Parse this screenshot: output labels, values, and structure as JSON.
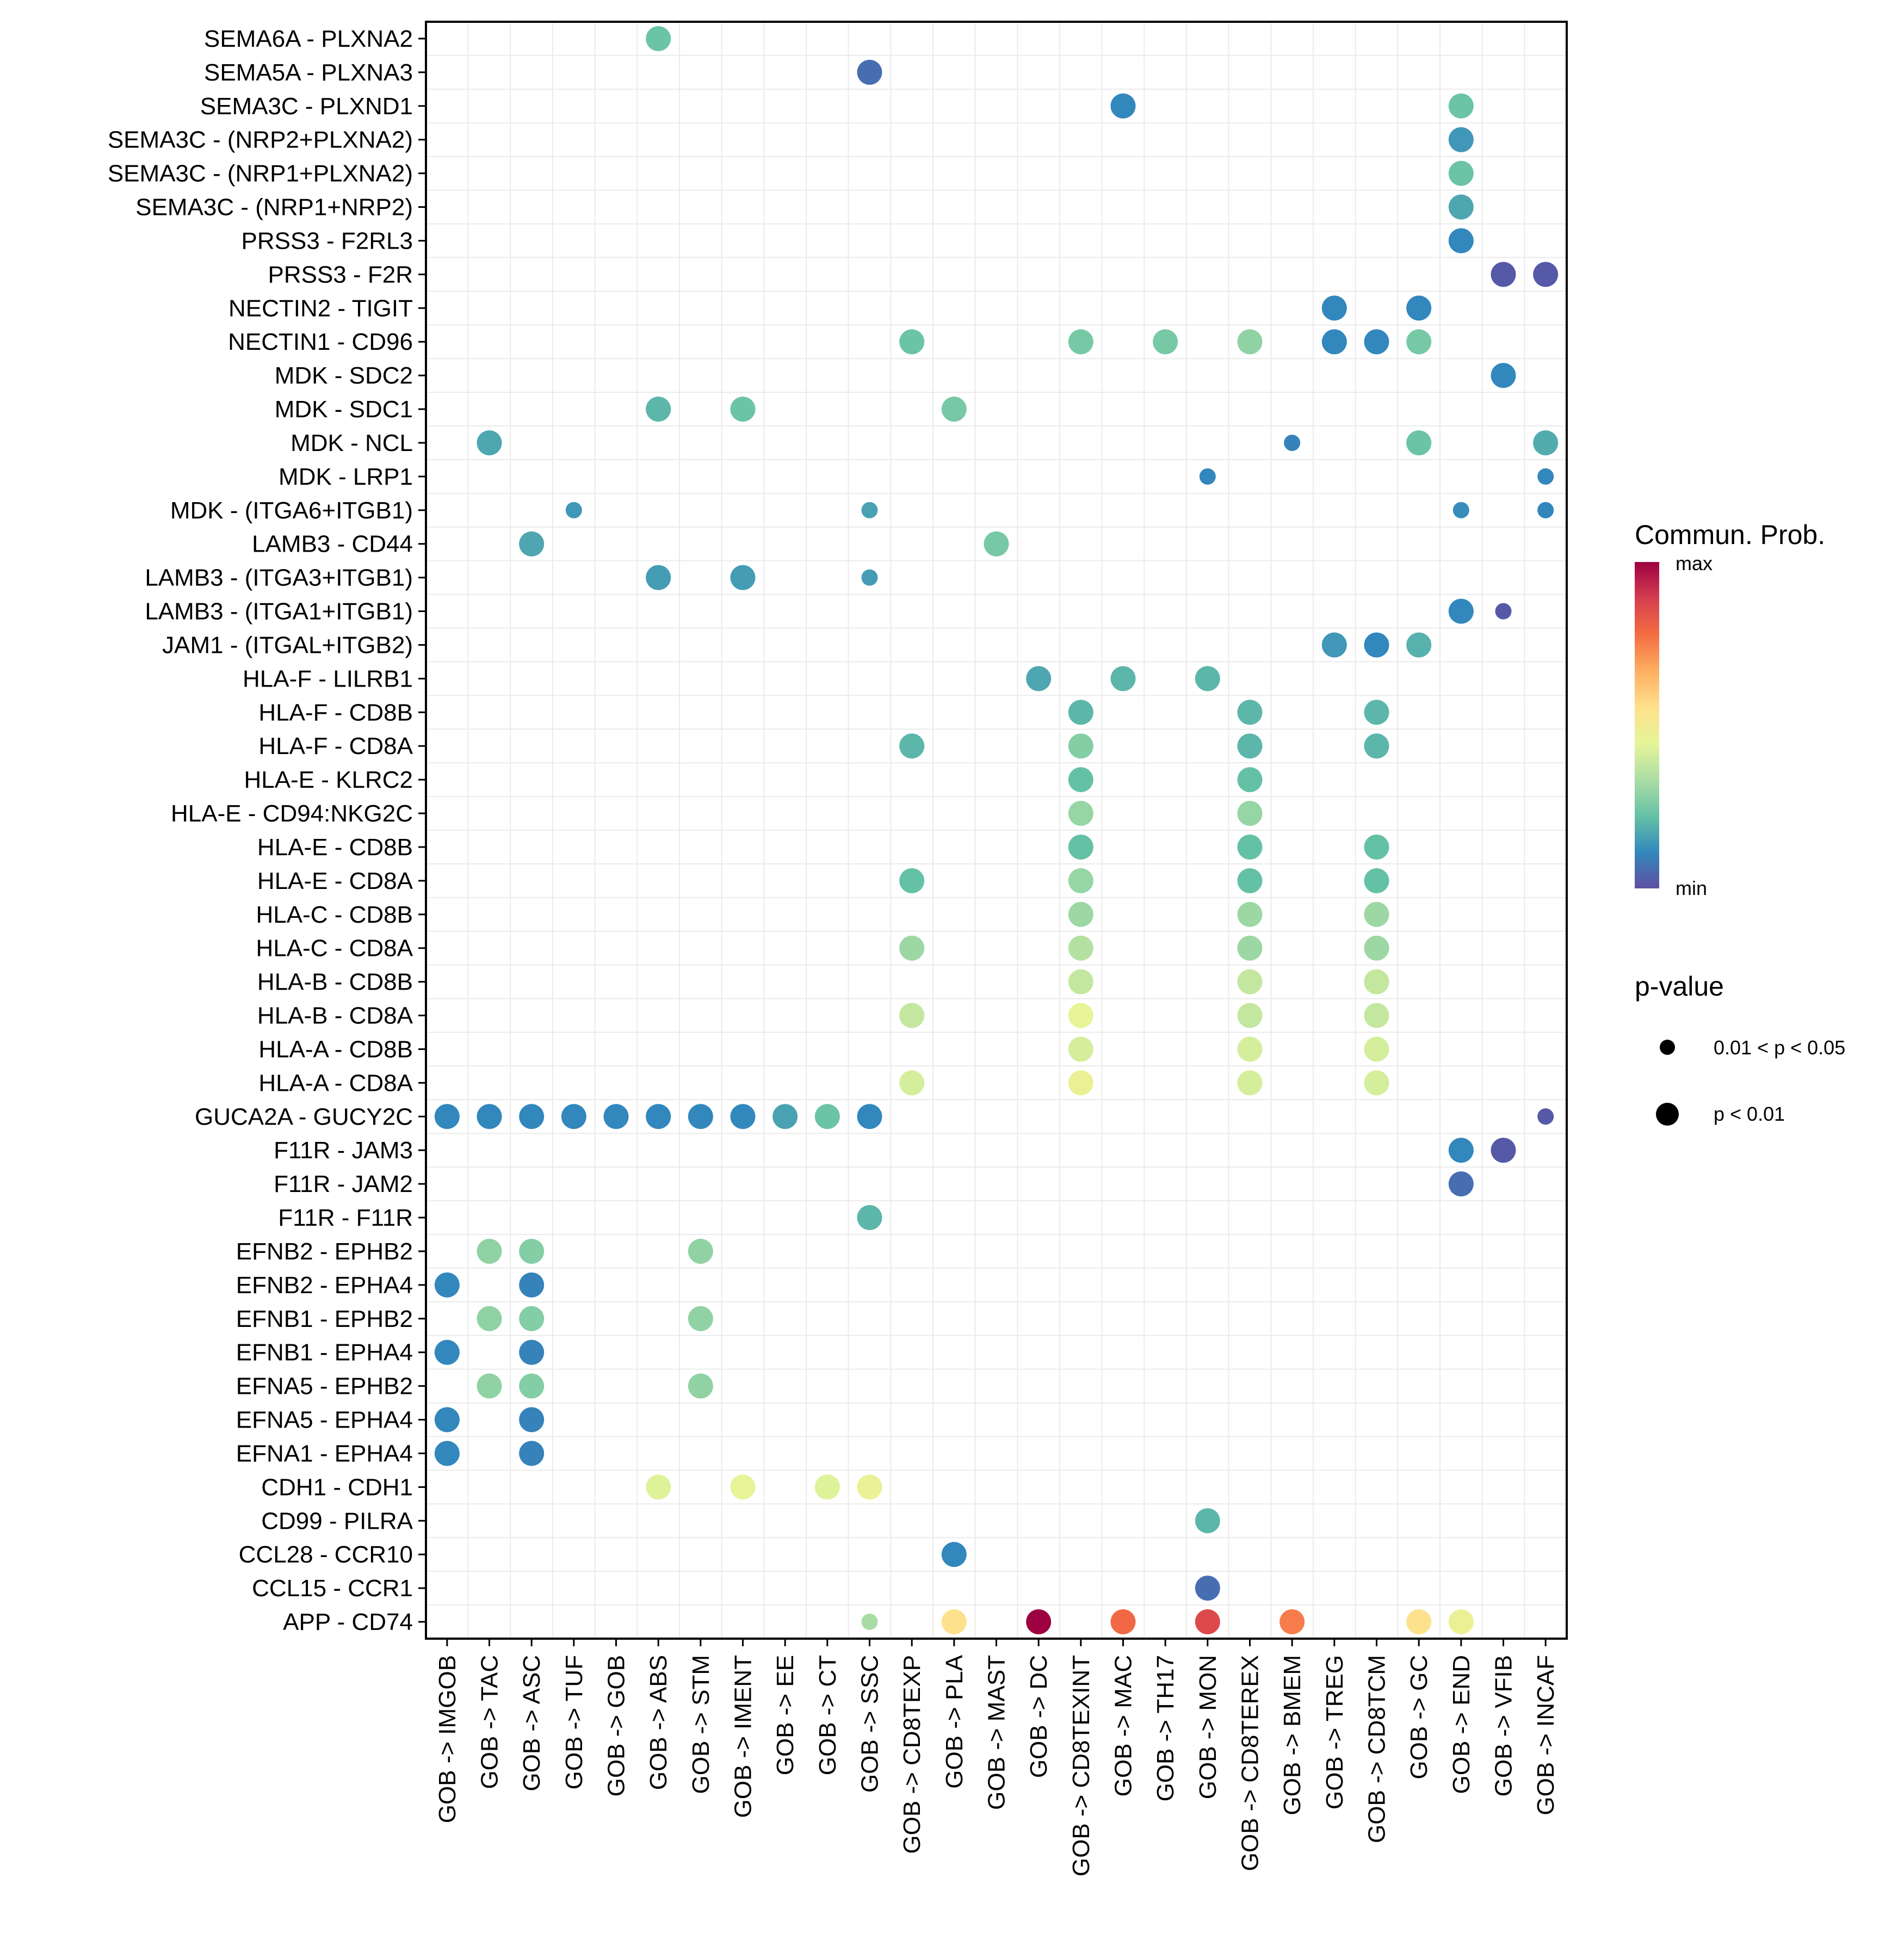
{
  "chart_data": {
    "type": "scatter",
    "subtype": "dot-plot",
    "title": "",
    "xlabel": "",
    "ylabel": "",
    "grid": true,
    "x_categories": [
      "GOB -> IMGOB",
      "GOB -> TAC",
      "GOB -> ASC",
      "GOB -> TUF",
      "GOB -> GOB",
      "GOB -> ABS",
      "GOB -> STM",
      "GOB -> IMENT",
      "GOB -> EE",
      "GOB -> CT",
      "GOB -> SSC",
      "GOB -> CD8TEXP",
      "GOB -> PLA",
      "GOB -> MAST",
      "GOB -> DC",
      "GOB -> CD8TEXINT",
      "GOB -> MAC",
      "GOB -> TH17",
      "GOB -> MON",
      "GOB -> CD8TEREX",
      "GOB -> BMEM",
      "GOB -> TREG",
      "GOB -> CD8TCM",
      "GOB -> GC",
      "GOB -> END",
      "GOB -> VFIB",
      "GOB -> INCAF"
    ],
    "y_categories": [
      "SEMA6A - PLXNA2",
      "SEMA5A - PLXNA3",
      "SEMA3C - PLXND1",
      "SEMA3C - (NRP2+PLXNA2)",
      "SEMA3C - (NRP1+PLXNA2)",
      "SEMA3C - (NRP1+NRP2)",
      "PRSS3 - F2RL3",
      "PRSS3 - F2R",
      "NECTIN2 - TIGIT",
      "NECTIN1 - CD96",
      "MDK - SDC2",
      "MDK - SDC1",
      "MDK - NCL",
      "MDK - LRP1",
      "MDK - (ITGA6+ITGB1)",
      "LAMB3 - CD44",
      "LAMB3 - (ITGA3+ITGB1)",
      "LAMB3 - (ITGA1+ITGB1)",
      "JAM1 - (ITGAL+ITGB2)",
      "HLA-F - LILRB1",
      "HLA-F - CD8B",
      "HLA-F - CD8A",
      "HLA-E - KLRC2",
      "HLA-E - CD94:NKG2C",
      "HLA-E - CD8B",
      "HLA-E - CD8A",
      "HLA-C - CD8B",
      "HLA-C - CD8A",
      "HLA-B - CD8B",
      "HLA-B - CD8A",
      "HLA-A - CD8B",
      "HLA-A - CD8A",
      "GUCA2A - GUCY2C",
      "F11R - JAM3",
      "F11R - JAM2",
      "F11R - F11R",
      "EFNB2 - EPHB2",
      "EFNB2 - EPHA4",
      "EFNB1 - EPHB2",
      "EFNB1 - EPHA4",
      "EFNA5 - EPHB2",
      "EFNA5 - EPHA4",
      "EFNA1 - EPHA4",
      "CDH1 - CDH1",
      "CD99 - PILRA",
      "CCL28 - CCR10",
      "CCL15 - CCR1",
      "APP - CD74"
    ],
    "points_note": "each point: [x category, y category, commun_prob (0=min, 1=max, relative), pval ('p < 0.01' or '0.01 < p < 0.05')]",
    "points": [
      [
        "GOB -> ABS",
        "SEMA6A - PLXNA2",
        0.23,
        "p < 0.01"
      ],
      [
        "GOB -> SSC",
        "SEMA5A - PLXNA3",
        0.06,
        "p < 0.01"
      ],
      [
        "GOB -> MAC",
        "SEMA3C - PLXND1",
        0.11,
        "p < 0.01"
      ],
      [
        "GOB -> END",
        "SEMA3C - PLXND1",
        0.23,
        "p < 0.01"
      ],
      [
        "GOB -> END",
        "SEMA3C - (NRP2+PLXNA2)",
        0.14,
        "p < 0.01"
      ],
      [
        "GOB -> END",
        "SEMA3C - (NRP1+PLXNA2)",
        0.23,
        "p < 0.01"
      ],
      [
        "GOB -> END",
        "SEMA3C - (NRP1+NRP2)",
        0.17,
        "p < 0.01"
      ],
      [
        "GOB -> END",
        "PRSS3 - F2RL3",
        0.11,
        "p < 0.01"
      ],
      [
        "GOB -> VFIB",
        "PRSS3 - F2R",
        0.02,
        "p < 0.01"
      ],
      [
        "GOB -> INCAF",
        "PRSS3 - F2R",
        0.02,
        "p < 0.01"
      ],
      [
        "GOB -> TREG",
        "NECTIN2 - TIGIT",
        0.11,
        "p < 0.01"
      ],
      [
        "GOB -> GC",
        "NECTIN2 - TIGIT",
        0.11,
        "p < 0.01"
      ],
      [
        "GOB -> CD8TEXP",
        "NECTIN1 - CD96",
        0.23,
        "p < 0.01"
      ],
      [
        "GOB -> CD8TEXINT",
        "NECTIN1 - CD96",
        0.25,
        "p < 0.01"
      ],
      [
        "GOB -> TH17",
        "NECTIN1 - CD96",
        0.25,
        "p < 0.01"
      ],
      [
        "GOB -> CD8TEREX",
        "NECTIN1 - CD96",
        0.29,
        "p < 0.01"
      ],
      [
        "GOB -> TREG",
        "NECTIN1 - CD96",
        0.11,
        "p < 0.01"
      ],
      [
        "GOB -> CD8TCM",
        "NECTIN1 - CD96",
        0.11,
        "p < 0.01"
      ],
      [
        "GOB -> GC",
        "NECTIN1 - CD96",
        0.25,
        "p < 0.01"
      ],
      [
        "GOB -> VFIB",
        "MDK - SDC2",
        0.11,
        "p < 0.01"
      ],
      [
        "GOB -> ABS",
        "MDK - SDC1",
        0.2,
        "p < 0.01"
      ],
      [
        "GOB -> IMENT",
        "MDK - SDC1",
        0.23,
        "p < 0.01"
      ],
      [
        "GOB -> PLA",
        "MDK - SDC1",
        0.25,
        "p < 0.01"
      ],
      [
        "GOB -> TAC",
        "MDK - NCL",
        0.17,
        "p < 0.01"
      ],
      [
        "GOB -> BMEM",
        "MDK - NCL",
        0.1,
        "0.01 < p < 0.05"
      ],
      [
        "GOB -> GC",
        "MDK - NCL",
        0.23,
        "p < 0.01"
      ],
      [
        "GOB -> INCAF",
        "MDK - NCL",
        0.18,
        "p < 0.01"
      ],
      [
        "GOB -> MON",
        "MDK - LRP1",
        0.11,
        "0.01 < p < 0.05"
      ],
      [
        "GOB -> INCAF",
        "MDK - LRP1",
        0.11,
        "0.01 < p < 0.05"
      ],
      [
        "GOB -> TUF",
        "MDK - (ITGA6+ITGB1)",
        0.14,
        "0.01 < p < 0.05"
      ],
      [
        "GOB -> SSC",
        "MDK - (ITGA6+ITGB1)",
        0.16,
        "0.01 < p < 0.05"
      ],
      [
        "GOB -> END",
        "MDK - (ITGA6+ITGB1)",
        0.12,
        "0.01 < p < 0.05"
      ],
      [
        "GOB -> INCAF",
        "MDK - (ITGA6+ITGB1)",
        0.11,
        "0.01 < p < 0.05"
      ],
      [
        "GOB -> ASC",
        "LAMB3 - CD44",
        0.17,
        "p < 0.01"
      ],
      [
        "GOB -> MAST",
        "LAMB3 - CD44",
        0.25,
        "p < 0.01"
      ],
      [
        "GOB -> ABS",
        "LAMB3 - (ITGA3+ITGB1)",
        0.15,
        "p < 0.01"
      ],
      [
        "GOB -> IMENT",
        "LAMB3 - (ITGA3+ITGB1)",
        0.15,
        "p < 0.01"
      ],
      [
        "GOB -> SSC",
        "LAMB3 - (ITGA3+ITGB1)",
        0.15,
        "0.01 < p < 0.05"
      ],
      [
        "GOB -> END",
        "LAMB3 - (ITGA1+ITGB1)",
        0.11,
        "p < 0.01"
      ],
      [
        "GOB -> VFIB",
        "LAMB3 - (ITGA1+ITGB1)",
        0.02,
        "0.01 < p < 0.05"
      ],
      [
        "GOB -> TREG",
        "JAM1 - (ITGAL+ITGB2)",
        0.14,
        "p < 0.01"
      ],
      [
        "GOB -> CD8TCM",
        "JAM1 - (ITGAL+ITGB2)",
        0.11,
        "p < 0.01"
      ],
      [
        "GOB -> GC",
        "JAM1 - (ITGAL+ITGB2)",
        0.19,
        "p < 0.01"
      ],
      [
        "GOB -> DC",
        "HLA-F - LILRB1",
        0.17,
        "p < 0.01"
      ],
      [
        "GOB -> MAC",
        "HLA-F - LILRB1",
        0.2,
        "p < 0.01"
      ],
      [
        "GOB -> MON",
        "HLA-F - LILRB1",
        0.2,
        "p < 0.01"
      ],
      [
        "GOB -> CD8TEXINT",
        "HLA-F - CD8B",
        0.2,
        "p < 0.01"
      ],
      [
        "GOB -> CD8TEREX",
        "HLA-F - CD8B",
        0.2,
        "p < 0.01"
      ],
      [
        "GOB -> CD8TCM",
        "HLA-F - CD8B",
        0.2,
        "p < 0.01"
      ],
      [
        "GOB -> CD8TEXP",
        "HLA-F - CD8A",
        0.2,
        "p < 0.01"
      ],
      [
        "GOB -> CD8TEXINT",
        "HLA-F - CD8A",
        0.27,
        "p < 0.01"
      ],
      [
        "GOB -> CD8TEREX",
        "HLA-F - CD8A",
        0.2,
        "p < 0.01"
      ],
      [
        "GOB -> CD8TCM",
        "HLA-F - CD8A",
        0.2,
        "p < 0.01"
      ],
      [
        "GOB -> CD8TEXINT",
        "HLA-E - KLRC2",
        0.22,
        "p < 0.01"
      ],
      [
        "GOB -> CD8TEREX",
        "HLA-E - KLRC2",
        0.22,
        "p < 0.01"
      ],
      [
        "GOB -> CD8TEXINT",
        "HLA-E - CD94:NKG2C",
        0.3,
        "p < 0.01"
      ],
      [
        "GOB -> CD8TEREX",
        "HLA-E - CD94:NKG2C",
        0.3,
        "p < 0.01"
      ],
      [
        "GOB -> CD8TEXINT",
        "HLA-E - CD8B",
        0.22,
        "p < 0.01"
      ],
      [
        "GOB -> CD8TEREX",
        "HLA-E - CD8B",
        0.22,
        "p < 0.01"
      ],
      [
        "GOB -> CD8TCM",
        "HLA-E - CD8B",
        0.22,
        "p < 0.01"
      ],
      [
        "GOB -> CD8TEXP",
        "HLA-E - CD8A",
        0.22,
        "p < 0.01"
      ],
      [
        "GOB -> CD8TEXINT",
        "HLA-E - CD8A",
        0.3,
        "p < 0.01"
      ],
      [
        "GOB -> CD8TEREX",
        "HLA-E - CD8A",
        0.22,
        "p < 0.01"
      ],
      [
        "GOB -> CD8TCM",
        "HLA-E - CD8A",
        0.22,
        "p < 0.01"
      ],
      [
        "GOB -> CD8TEXINT",
        "HLA-C - CD8B",
        0.31,
        "p < 0.01"
      ],
      [
        "GOB -> CD8TEREX",
        "HLA-C - CD8B",
        0.31,
        "p < 0.01"
      ],
      [
        "GOB -> CD8TCM",
        "HLA-C - CD8B",
        0.31,
        "p < 0.01"
      ],
      [
        "GOB -> CD8TEXP",
        "HLA-C - CD8A",
        0.31,
        "p < 0.01"
      ],
      [
        "GOB -> CD8TEXINT",
        "HLA-C - CD8A",
        0.35,
        "p < 0.01"
      ],
      [
        "GOB -> CD8TEREX",
        "HLA-C - CD8A",
        0.31,
        "p < 0.01"
      ],
      [
        "GOB -> CD8TCM",
        "HLA-C - CD8A",
        0.31,
        "p < 0.01"
      ],
      [
        "GOB -> CD8TEXINT",
        "HLA-B - CD8B",
        0.38,
        "p < 0.01"
      ],
      [
        "GOB -> CD8TEREX",
        "HLA-B - CD8B",
        0.38,
        "p < 0.01"
      ],
      [
        "GOB -> CD8TCM",
        "HLA-B - CD8B",
        0.38,
        "p < 0.01"
      ],
      [
        "GOB -> CD8TEXP",
        "HLA-B - CD8A",
        0.38,
        "p < 0.01"
      ],
      [
        "GOB -> CD8TEXINT",
        "HLA-B - CD8A",
        0.45,
        "p < 0.01"
      ],
      [
        "GOB -> CD8TEREX",
        "HLA-B - CD8A",
        0.38,
        "p < 0.01"
      ],
      [
        "GOB -> CD8TCM",
        "HLA-B - CD8A",
        0.38,
        "p < 0.01"
      ],
      [
        "GOB -> CD8TEXINT",
        "HLA-A - CD8B",
        0.41,
        "p < 0.01"
      ],
      [
        "GOB -> CD8TEREX",
        "HLA-A - CD8B",
        0.41,
        "p < 0.01"
      ],
      [
        "GOB -> CD8TCM",
        "HLA-A - CD8B",
        0.41,
        "p < 0.01"
      ],
      [
        "GOB -> CD8TEXP",
        "HLA-A - CD8A",
        0.41,
        "p < 0.01"
      ],
      [
        "GOB -> CD8TEXINT",
        "HLA-A - CD8A",
        0.47,
        "p < 0.01"
      ],
      [
        "GOB -> CD8TEREX",
        "HLA-A - CD8A",
        0.41,
        "p < 0.01"
      ],
      [
        "GOB -> CD8TCM",
        "HLA-A - CD8A",
        0.41,
        "p < 0.01"
      ],
      [
        "GOB -> IMGOB",
        "GUCA2A - GUCY2C",
        0.11,
        "p < 0.01"
      ],
      [
        "GOB -> TAC",
        "GUCA2A - GUCY2C",
        0.11,
        "p < 0.01"
      ],
      [
        "GOB -> ASC",
        "GUCA2A - GUCY2C",
        0.11,
        "p < 0.01"
      ],
      [
        "GOB -> TUF",
        "GUCA2A - GUCY2C",
        0.11,
        "p < 0.01"
      ],
      [
        "GOB -> GOB",
        "GUCA2A - GUCY2C",
        0.11,
        "p < 0.01"
      ],
      [
        "GOB -> ABS",
        "GUCA2A - GUCY2C",
        0.11,
        "p < 0.01"
      ],
      [
        "GOB -> STM",
        "GUCA2A - GUCY2C",
        0.11,
        "p < 0.01"
      ],
      [
        "GOB -> IMENT",
        "GUCA2A - GUCY2C",
        0.11,
        "p < 0.01"
      ],
      [
        "GOB -> EE",
        "GUCA2A - GUCY2C",
        0.16,
        "p < 0.01"
      ],
      [
        "GOB -> CT",
        "GUCA2A - GUCY2C",
        0.23,
        "p < 0.01"
      ],
      [
        "GOB -> SSC",
        "GUCA2A - GUCY2C",
        0.11,
        "p < 0.01"
      ],
      [
        "GOB -> INCAF",
        "GUCA2A - GUCY2C",
        0.02,
        "0.01 < p < 0.05"
      ],
      [
        "GOB -> END",
        "F11R - JAM3",
        0.11,
        "p < 0.01"
      ],
      [
        "GOB -> VFIB",
        "F11R - JAM3",
        0.02,
        "p < 0.01"
      ],
      [
        "GOB -> END",
        "F11R - JAM2",
        0.06,
        "p < 0.01"
      ],
      [
        "GOB -> SSC",
        "F11R - F11R",
        0.2,
        "p < 0.01"
      ],
      [
        "GOB -> TAC",
        "EFNB2 - EPHB2",
        0.29,
        "p < 0.01"
      ],
      [
        "GOB -> ASC",
        "EFNB2 - EPHB2",
        0.27,
        "p < 0.01"
      ],
      [
        "GOB -> STM",
        "EFNB2 - EPHB2",
        0.29,
        "p < 0.01"
      ],
      [
        "GOB -> IMGOB",
        "EFNB2 - EPHA4",
        0.11,
        "p < 0.01"
      ],
      [
        "GOB -> ASC",
        "EFNB2 - EPHA4",
        0.1,
        "p < 0.01"
      ],
      [
        "GOB -> TAC",
        "EFNB1 - EPHB2",
        0.29,
        "p < 0.01"
      ],
      [
        "GOB -> ASC",
        "EFNB1 - EPHB2",
        0.27,
        "p < 0.01"
      ],
      [
        "GOB -> STM",
        "EFNB1 - EPHB2",
        0.29,
        "p < 0.01"
      ],
      [
        "GOB -> IMGOB",
        "EFNB1 - EPHA4",
        0.11,
        "p < 0.01"
      ],
      [
        "GOB -> ASC",
        "EFNB1 - EPHA4",
        0.1,
        "p < 0.01"
      ],
      [
        "GOB -> TAC",
        "EFNA5 - EPHB2",
        0.29,
        "p < 0.01"
      ],
      [
        "GOB -> ASC",
        "EFNA5 - EPHB2",
        0.27,
        "p < 0.01"
      ],
      [
        "GOB -> STM",
        "EFNA5 - EPHB2",
        0.29,
        "p < 0.01"
      ],
      [
        "GOB -> IMGOB",
        "EFNA5 - EPHA4",
        0.11,
        "p < 0.01"
      ],
      [
        "GOB -> ASC",
        "EFNA5 - EPHA4",
        0.1,
        "p < 0.01"
      ],
      [
        "GOB -> IMGOB",
        "EFNA1 - EPHA4",
        0.11,
        "p < 0.01"
      ],
      [
        "GOB -> ASC",
        "EFNA1 - EPHA4",
        0.1,
        "p < 0.01"
      ],
      [
        "GOB -> ABS",
        "CDH1 - CDH1",
        0.43,
        "p < 0.01"
      ],
      [
        "GOB -> IMENT",
        "CDH1 - CDH1",
        0.45,
        "p < 0.01"
      ],
      [
        "GOB -> CT",
        "CDH1 - CDH1",
        0.43,
        "p < 0.01"
      ],
      [
        "GOB -> SSC",
        "CDH1 - CDH1",
        0.46,
        "p < 0.01"
      ],
      [
        "GOB -> MON",
        "CD99 - PILRA",
        0.2,
        "p < 0.01"
      ],
      [
        "GOB -> PLA",
        "CCL28 - CCR10",
        0.11,
        "p < 0.01"
      ],
      [
        "GOB -> MON",
        "CCL15 - CCR1",
        0.06,
        "p < 0.01"
      ],
      [
        "GOB -> SSC",
        "APP - CD74",
        0.33,
        "0.01 < p < 0.05"
      ],
      [
        "GOB -> PLA",
        "APP - CD74",
        0.55,
        "p < 0.01"
      ],
      [
        "GOB -> DC",
        "APP - CD74",
        1.0,
        "p < 0.01"
      ],
      [
        "GOB -> MAC",
        "APP - CD74",
        0.79,
        "p < 0.01"
      ],
      [
        "GOB -> MON",
        "APP - CD74",
        0.86,
        "p < 0.01"
      ],
      [
        "GOB -> BMEM",
        "APP - CD74",
        0.75,
        "p < 0.01"
      ],
      [
        "GOB -> GC",
        "APP - CD74",
        0.55,
        "p < 0.01"
      ],
      [
        "GOB -> END",
        "APP - CD74",
        0.47,
        "p < 0.01"
      ]
    ],
    "color_legend": {
      "title": "Commun. Prob.",
      "max_label": "max",
      "min_label": "min",
      "palette": [
        "#5E4FA2",
        "#3288BD",
        "#66C2A5",
        "#ABDDA4",
        "#E6F598",
        "#FEE08B",
        "#FDAE61",
        "#F46D43",
        "#D53E4F",
        "#9E0142"
      ],
      "placement": "right"
    },
    "size_legend": {
      "title": "p-value",
      "entries": [
        "0.01 < p < 0.05",
        "p < 0.01"
      ],
      "placement": "right"
    }
  }
}
